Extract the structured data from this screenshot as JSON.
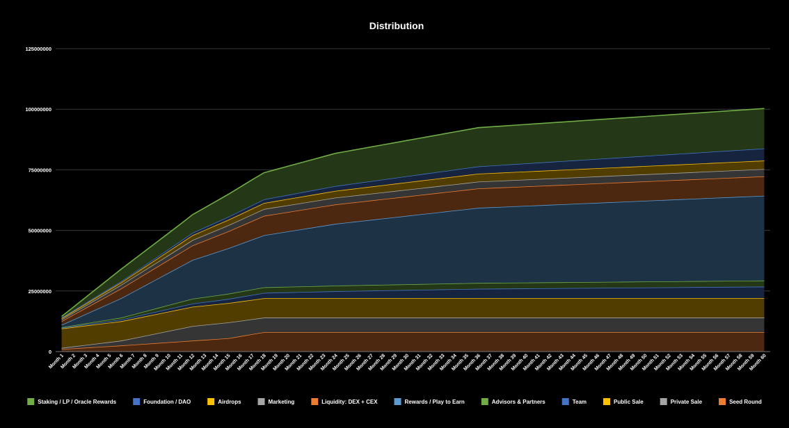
{
  "chart_data": {
    "type": "area",
    "stacked": true,
    "title": "Distribution",
    "xlabel": "",
    "ylabel": "",
    "ylim": [
      0,
      125000000
    ],
    "yticks": [
      0,
      25000000,
      50000000,
      75000000,
      100000000,
      125000000
    ],
    "ytick_labels": [
      "0",
      "25000000",
      "50000000",
      "75000000",
      "100000000",
      "125000000"
    ],
    "grid": true,
    "legend_position": "bottom",
    "categories": [
      "Month 1",
      "Month 2",
      "Month 3",
      "Month 4",
      "Month 5",
      "Month 6",
      "Month 7",
      "Month 8",
      "Month 9",
      "Month 10",
      "Month 11",
      "Month 12",
      "Month 13",
      "Month 14",
      "Month 15",
      "Month 16",
      "Month 17",
      "Month 18",
      "Month 19",
      "Month 20",
      "Month 21",
      "Month 22",
      "Month 23",
      "Month 24",
      "Month 25",
      "Month 26",
      "Month 27",
      "Month 28",
      "Month 29",
      "Month 30",
      "Month 31",
      "Month 32",
      "Month 33",
      "Month 34",
      "Month 35",
      "Month 36",
      "Month 37",
      "Month 38",
      "Month 39",
      "Month 40",
      "Month 41",
      "Month 42",
      "Month 43",
      "Month 44",
      "Month 45",
      "Month 46",
      "Month 47",
      "Month 48",
      "Month 49",
      "Month 50",
      "Month 51",
      "Month 52",
      "Month 53",
      "Month 54",
      "Month 55",
      "Month 56",
      "Month 57",
      "Month 58",
      "Month 59",
      "Month 60"
    ],
    "series": [
      {
        "name": "Seed Round",
        "color": "#ed7d31",
        "keys": [
          [
            1,
            1000000
          ],
          [
            6,
            2500000
          ],
          [
            12,
            4500000
          ],
          [
            15,
            5500000
          ],
          [
            18,
            8000000
          ],
          [
            60,
            8000000
          ]
        ]
      },
      {
        "name": "Private Sale",
        "color": "#a5a5a5",
        "keys": [
          [
            1,
            500000
          ],
          [
            6,
            2000000
          ],
          [
            12,
            6000000
          ],
          [
            15,
            6500000
          ],
          [
            18,
            6000000
          ],
          [
            60,
            6000000
          ]
        ]
      },
      {
        "name": "Public Sale",
        "color": "#ffc000",
        "keys": [
          [
            1,
            8000000
          ],
          [
            6,
            8000000
          ],
          [
            12,
            8000000
          ],
          [
            15,
            8000000
          ],
          [
            18,
            8000000
          ],
          [
            60,
            8000000
          ]
        ]
      },
      {
        "name": "Team",
        "color": "#4472c4",
        "keys": [
          [
            1,
            300000
          ],
          [
            6,
            700000
          ],
          [
            12,
            1300000
          ],
          [
            15,
            1700000
          ],
          [
            18,
            2200000
          ],
          [
            24,
            2900000
          ],
          [
            36,
            3900000
          ],
          [
            60,
            4800000
          ]
        ]
      },
      {
        "name": "Advisors & Partners",
        "color": "#70ad47",
        "keys": [
          [
            1,
            200000
          ],
          [
            6,
            800000
          ],
          [
            12,
            2000000
          ],
          [
            18,
            2300000
          ],
          [
            24,
            2300000
          ],
          [
            36,
            2400000
          ],
          [
            60,
            2500000
          ]
        ]
      },
      {
        "name": "Rewards / Play to Earn",
        "color": "#5b9bd5",
        "keys": [
          [
            1,
            1000000
          ],
          [
            6,
            8000000
          ],
          [
            12,
            16000000
          ],
          [
            18,
            21500000
          ],
          [
            24,
            25500000
          ],
          [
            36,
            31000000
          ],
          [
            60,
            35000000
          ]
        ]
      },
      {
        "name": "Liquidity: DEX + CEX",
        "color": "#ed7d31",
        "keys": [
          [
            1,
            1500000
          ],
          [
            6,
            4000000
          ],
          [
            12,
            6000000
          ],
          [
            18,
            8000000
          ],
          [
            24,
            8000000
          ],
          [
            36,
            8000000
          ],
          [
            60,
            8000000
          ]
        ]
      },
      {
        "name": "Marketing",
        "color": "#a5a5a5",
        "keys": [
          [
            1,
            700000
          ],
          [
            6,
            1500000
          ],
          [
            12,
            2200000
          ],
          [
            18,
            2800000
          ],
          [
            24,
            2800000
          ],
          [
            36,
            2800000
          ],
          [
            60,
            3000000
          ]
        ]
      },
      {
        "name": "Airdrops",
        "color": "#ffc000",
        "keys": [
          [
            1,
            500000
          ],
          [
            6,
            1000000
          ],
          [
            12,
            2000000
          ],
          [
            18,
            2500000
          ],
          [
            24,
            2800000
          ],
          [
            36,
            3300000
          ],
          [
            60,
            3500000
          ]
        ]
      },
      {
        "name": "Foundation / DAO",
        "color": "#4472c4",
        "keys": [
          [
            1,
            300000
          ],
          [
            6,
            500000
          ],
          [
            12,
            1000000
          ],
          [
            18,
            1500000
          ],
          [
            24,
            2000000
          ],
          [
            36,
            3000000
          ],
          [
            60,
            5000000
          ]
        ]
      },
      {
        "name": "Staking / LP / Oracle Rewards",
        "color": "#70ad47",
        "keys": [
          [
            1,
            500000
          ],
          [
            6,
            5000000
          ],
          [
            11,
            7000000
          ],
          [
            12,
            7500000
          ],
          [
            17,
            10500000
          ],
          [
            18,
            11000000
          ],
          [
            24,
            13500000
          ],
          [
            36,
            16000000
          ],
          [
            60,
            16500000
          ]
        ]
      }
    ],
    "legend_order": [
      "Staking / LP / Oracle Rewards",
      "Foundation / DAO",
      "Airdrops",
      "Marketing",
      "Liquidity: DEX + CEX",
      "Rewards / Play to Earn",
      "Advisors & Partners",
      "Team",
      "Public Sale",
      "Private Sale",
      "Seed Round"
    ]
  }
}
